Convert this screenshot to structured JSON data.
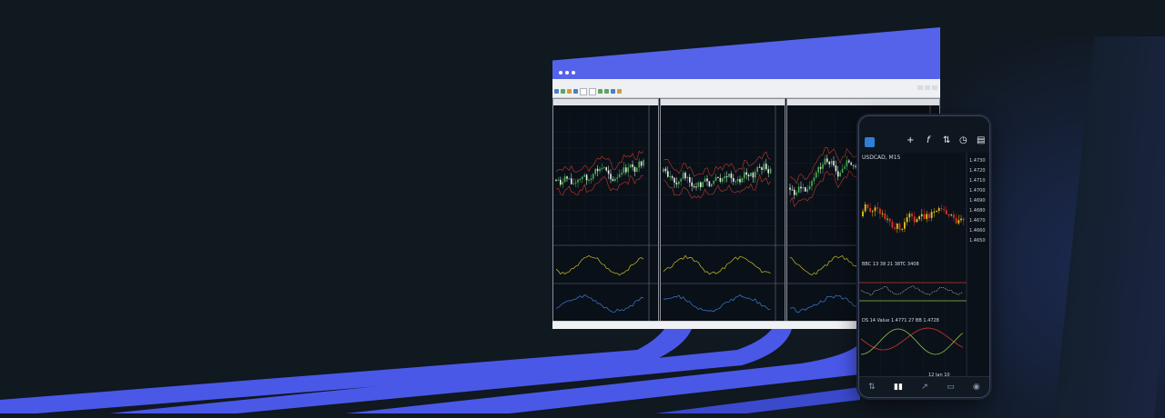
{
  "colors": {
    "background": "#101820",
    "accent": "#5563ea",
    "bull_candle": "#4caf50",
    "bear_candle": "#e8ede8",
    "band_red": "#c0392b",
    "osc_yellow": "#c8c020",
    "osc_blue": "#3a7fd5"
  },
  "desktop": {
    "app": "trading-terminal",
    "panes": [
      {
        "id": "pane-1"
      },
      {
        "id": "pane-2"
      },
      {
        "id": "pane-3"
      }
    ]
  },
  "phone": {
    "symbol": "USDCAD, M15",
    "prices": [
      "1.4730",
      "1.4720",
      "1.4710",
      "1.4700",
      "1.4690",
      "1.4680",
      "1.4670",
      "1.4660",
      "1.4650"
    ],
    "indicator_1": "BBC 13 38 21 38TC 3408",
    "indicator_2": "DS 14 Value 1.4771 27 BB 1.4728",
    "date_label": "12 Jan 10",
    "toolbar_icons": [
      "crosshair-icon",
      "function-icon",
      "indicators-icon",
      "clock-icon",
      "new-order-icon"
    ],
    "nav_icons": [
      "quotes-icon",
      "chart-icon",
      "trade-icon",
      "history-icon",
      "messages-icon"
    ]
  }
}
